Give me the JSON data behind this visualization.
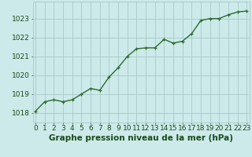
{
  "x": [
    0,
    1,
    2,
    3,
    4,
    5,
    6,
    7,
    8,
    9,
    10,
    11,
    12,
    13,
    14,
    15,
    16,
    17,
    18,
    19,
    20,
    21,
    22,
    23
  ],
  "y": [
    1018.1,
    1018.6,
    1018.7,
    1018.6,
    1018.7,
    1019.0,
    1019.3,
    1019.2,
    1019.9,
    1020.4,
    1021.0,
    1021.4,
    1021.45,
    1021.45,
    1021.9,
    1021.7,
    1021.8,
    1022.2,
    1022.9,
    1023.0,
    1023.0,
    1023.2,
    1023.35,
    1023.4
  ],
  "line_color": "#2d6a2d",
  "marker": "+",
  "marker_size": 3.5,
  "line_width": 1.0,
  "bg_color": "#cceaea",
  "grid_color": "#aac8c8",
  "ylabel_ticks": [
    1018,
    1019,
    1020,
    1021,
    1022,
    1023
  ],
  "xlabel": "Graphe pression niveau de la mer (hPa)",
  "xlabel_fontsize": 7.5,
  "tick_fontsize": 6.5,
  "ylim": [
    1017.5,
    1023.9
  ],
  "xlim": [
    -0.3,
    23.3
  ],
  "text_color": "#1a4a1a"
}
